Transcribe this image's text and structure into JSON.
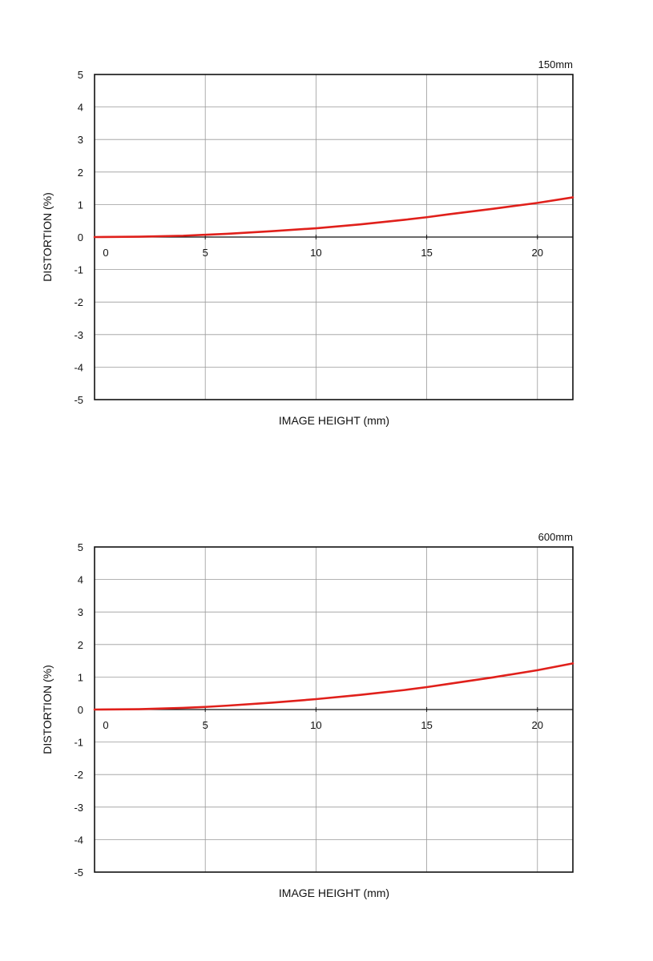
{
  "chart_data": [
    {
      "type": "line",
      "title": "150mm",
      "xlabel": "IMAGE HEIGHT (mm)",
      "ylabel": "DISTORTION (%)",
      "xlim": [
        0,
        21.6
      ],
      "ylim": [
        -5,
        5
      ],
      "x_ticks": [
        0,
        5,
        10,
        15,
        20
      ],
      "y_ticks": [
        5,
        4,
        3,
        2,
        1,
        0,
        -1,
        -2,
        -3,
        -4,
        -5
      ],
      "grid": true,
      "series": [
        {
          "color": "#e0201b",
          "x": [
            0,
            2,
            4,
            5,
            6,
            8,
            10,
            12,
            14,
            15,
            16,
            18,
            20,
            21.6
          ],
          "y": [
            0,
            0.01,
            0.04,
            0.07,
            0.1,
            0.18,
            0.27,
            0.39,
            0.53,
            0.61,
            0.7,
            0.87,
            1.05,
            1.22
          ]
        }
      ]
    },
    {
      "type": "line",
      "title": "600mm",
      "xlabel": "IMAGE HEIGHT (mm)",
      "ylabel": "DISTORTION (%)",
      "xlim": [
        0,
        21.6
      ],
      "ylim": [
        -5,
        5
      ],
      "x_ticks": [
        0,
        5,
        10,
        15,
        20
      ],
      "y_ticks": [
        5,
        4,
        3,
        2,
        1,
        0,
        -1,
        -2,
        -3,
        -4,
        -5
      ],
      "grid": true,
      "series": [
        {
          "color": "#e0201b",
          "x": [
            0,
            2,
            4,
            5,
            6,
            8,
            10,
            12,
            14,
            15,
            16,
            18,
            20,
            21.6
          ],
          "y": [
            0,
            0.01,
            0.05,
            0.08,
            0.12,
            0.21,
            0.32,
            0.45,
            0.6,
            0.69,
            0.79,
            0.99,
            1.21,
            1.42
          ]
        }
      ]
    }
  ]
}
